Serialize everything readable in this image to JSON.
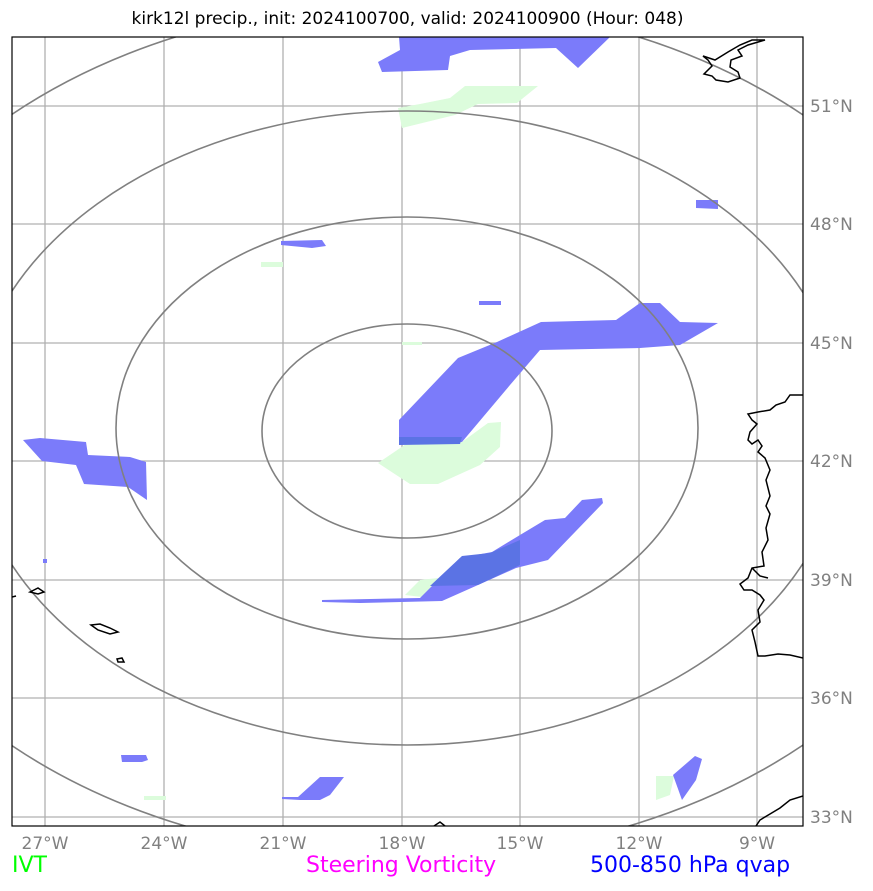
{
  "title": "kirk12l precip., init: 2024100700, valid: 2024100900 (Hour: 048)",
  "legend": {
    "ivt": "IVT",
    "vorticity": "Steering Vorticity",
    "qvap": "500-850 hPa qvap"
  },
  "colors": {
    "ivt": "#00ff00",
    "vorticity": "#ff00ff",
    "qvap": "#0000ff",
    "qvap_fill": "#7b7bfa",
    "ivt_fill": "#dcfcdc",
    "grid": "#b0b0b0",
    "rings": "#808080",
    "coast": "#000000"
  },
  "latitudes": [
    "51°N",
    "48°N",
    "45°N",
    "42°N",
    "39°N",
    "36°N",
    "33°N"
  ],
  "longitudes": [
    "27°W",
    "24°W",
    "21°W",
    "18°W",
    "15°W",
    "12°W",
    "9°W"
  ]
}
